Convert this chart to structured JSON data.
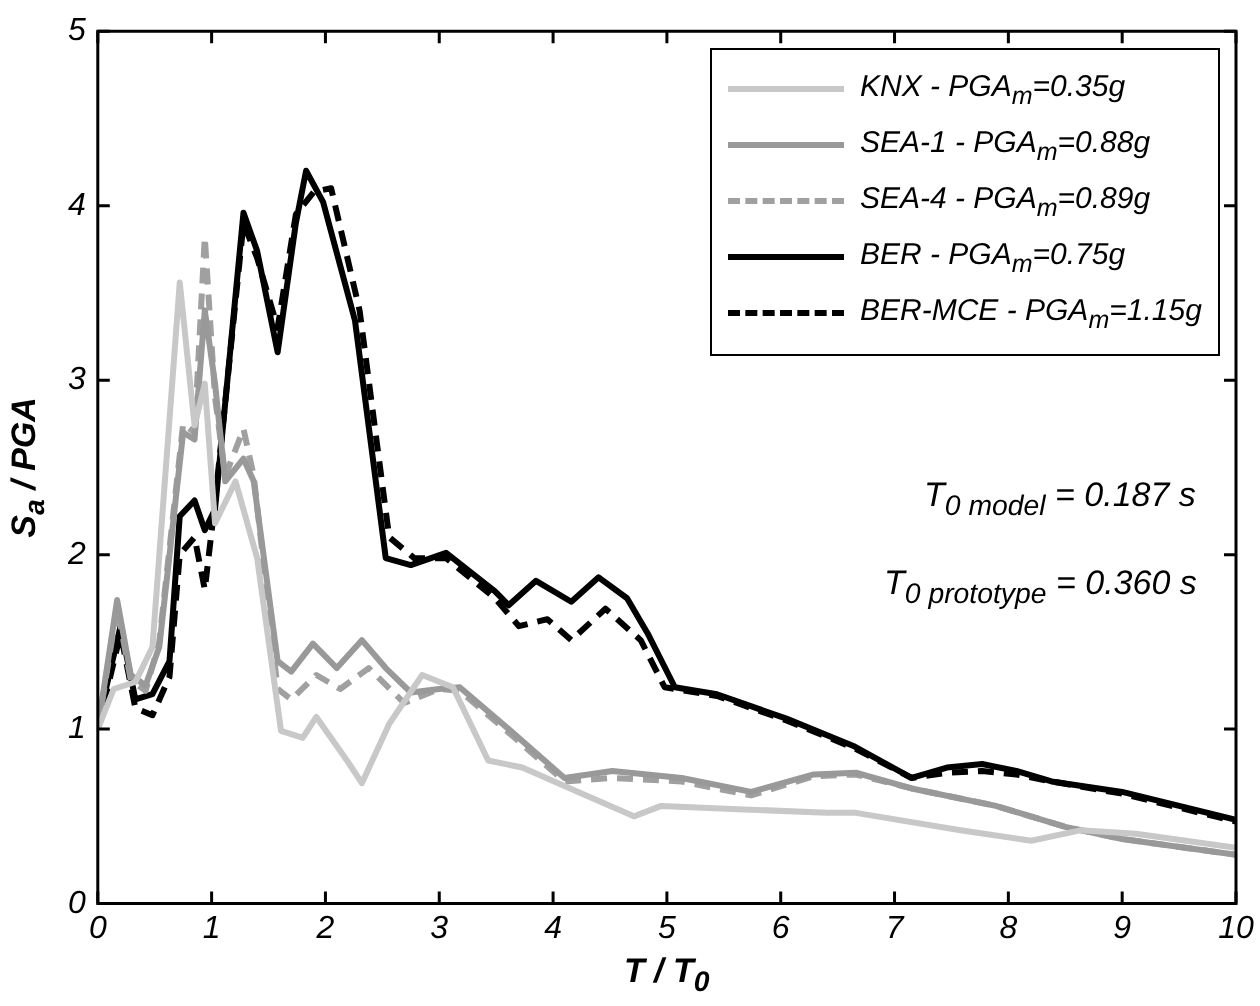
{
  "chart_data": {
    "type": "line",
    "xlabel": "T / T$_{0}$",
    "ylabel": "S$_{a}$ / PGA",
    "xlim": [
      0,
      10
    ],
    "xticks": [
      0,
      1,
      2,
      3,
      4,
      5,
      6,
      7,
      8,
      9,
      10
    ],
    "ylim": [
      0,
      5
    ],
    "yticks": [
      0,
      1,
      2,
      3,
      4,
      5
    ],
    "grid": false,
    "legend": "top right",
    "marker": "none",
    "annotations": [
      "T$_{0 model}$ = 0.187 s",
      "T$_{0 prototype}$ = 0.360 s"
    ],
    "series": [
      {
        "name": "KNX - PGA$_{m}$=0.35g",
        "color": "#c8c8c8",
        "line_style": "solid",
        "x": [
          0,
          0.14,
          0.33,
          0.48,
          0.72,
          0.85,
          0.94,
          1.03,
          1.21,
          1.4,
          1.61,
          1.8,
          1.92,
          2.2,
          2.32,
          2.56,
          2.85,
          3.12,
          3.43,
          3.73,
          4.22,
          4.71,
          4.95,
          5.68,
          6.41,
          6.66,
          7.58,
          8.2,
          8.63,
          9.12,
          10
        ],
        "values": [
          1,
          1.23,
          1.27,
          1.47,
          3.56,
          2.74,
          2.98,
          2.18,
          2.42,
          1.98,
          0.99,
          0.95,
          1.07,
          0.81,
          0.69,
          1.03,
          1.31,
          1.24,
          0.82,
          0.78,
          0.64,
          0.5,
          0.56,
          0.54,
          0.52,
          0.52,
          0.42,
          0.36,
          0.42,
          0.4,
          0.32
        ]
      },
      {
        "name": "SEA-1 - PGA$_{m}$=0.88g",
        "color": "#999999",
        "line_style": "solid",
        "x": [
          0,
          0.17,
          0.29,
          0.42,
          0.54,
          0.75,
          0.85,
          0.94,
          1.03,
          1.12,
          1.28,
          1.37,
          1.58,
          1.7,
          1.89,
          2.1,
          2.32,
          2.53,
          2.75,
          3.0,
          3.18,
          3.61,
          4.1,
          4.52,
          5.13,
          5.74,
          6.29,
          6.66,
          7.15,
          7.89,
          8.5,
          9.0,
          10
        ],
        "values": [
          1,
          1.74,
          1.31,
          1.25,
          1.47,
          2.7,
          2.66,
          3.4,
          2.98,
          2.42,
          2.55,
          2.42,
          1.39,
          1.33,
          1.49,
          1.35,
          1.51,
          1.35,
          1.21,
          1.23,
          1.24,
          1.0,
          0.72,
          0.76,
          0.72,
          0.64,
          0.74,
          0.75,
          0.66,
          0.56,
          0.44,
          0.37,
          0.28
        ]
      },
      {
        "name": "SEA-4 - PGA$_{m}$=0.89g",
        "color": "#a0a0a0",
        "line_style": "dashed",
        "x": [
          0,
          0.17,
          0.29,
          0.42,
          0.54,
          0.75,
          0.85,
          0.94,
          1.03,
          1.12,
          1.28,
          1.37,
          1.58,
          1.7,
          1.92,
          2.13,
          2.38,
          2.69,
          3.0,
          3.18,
          3.61,
          4.1,
          4.52,
          5.13,
          5.74,
          6.29,
          6.66,
          7.15,
          7.89,
          8.5,
          9.0,
          10
        ],
        "values": [
          1,
          1.7,
          1.28,
          1.22,
          1.5,
          2.75,
          2.7,
          3.82,
          2.9,
          2.45,
          2.72,
          2.45,
          1.23,
          1.17,
          1.31,
          1.23,
          1.35,
          1.15,
          1.23,
          1.22,
          0.98,
          0.7,
          0.72,
          0.7,
          0.62,
          0.73,
          0.74,
          0.66,
          0.56,
          0.44,
          0.37,
          0.28
        ]
      },
      {
        "name": "BER - PGA$_{m}$=0.75g",
        "color": "#000000",
        "line_style": "solid",
        "x": [
          0,
          0.2,
          0.33,
          0.48,
          0.63,
          0.72,
          0.85,
          0.94,
          1.03,
          1.28,
          1.4,
          1.58,
          1.74,
          1.83,
          1.98,
          2.26,
          2.53,
          2.75,
          3.06,
          3.49,
          3.61,
          3.85,
          4.16,
          4.4,
          4.65,
          4.83,
          5.07,
          5.44,
          6.05,
          6.65,
          7.15,
          7.46,
          7.77,
          8.07,
          8.38,
          9.0,
          10
        ],
        "values": [
          1.03,
          1.59,
          1.17,
          1.2,
          1.39,
          2.22,
          2.31,
          2.14,
          2.26,
          3.96,
          3.74,
          3.16,
          3.9,
          4.2,
          4.02,
          3.34,
          1.98,
          1.94,
          2.01,
          1.79,
          1.71,
          1.85,
          1.73,
          1.87,
          1.75,
          1.55,
          1.24,
          1.2,
          1.06,
          0.9,
          0.72,
          0.78,
          0.8,
          0.76,
          0.7,
          0.64,
          0.48
        ]
      },
      {
        "name": "BER-MCE - PGA$_{m}$=1.15g",
        "color": "#000000",
        "line_style": "dashed",
        "x": [
          0,
          0.2,
          0.33,
          0.48,
          0.63,
          0.72,
          0.85,
          0.94,
          1.03,
          1.28,
          1.4,
          1.58,
          1.74,
          1.9,
          2.05,
          2.3,
          2.56,
          2.78,
          3.06,
          3.49,
          3.7,
          3.95,
          4.16,
          4.46,
          4.77,
          4.98,
          5.44,
          6.05,
          6.65,
          7.15,
          7.46,
          7.77,
          8.07,
          8.38,
          9.0,
          10
        ],
        "values": [
          1.0,
          1.55,
          1.12,
          1.08,
          1.3,
          2.0,
          2.1,
          1.8,
          2.3,
          3.9,
          3.7,
          3.3,
          3.95,
          4.08,
          4.1,
          3.4,
          2.1,
          1.98,
          1.98,
          1.75,
          1.59,
          1.63,
          1.51,
          1.69,
          1.51,
          1.24,
          1.19,
          1.05,
          0.89,
          0.72,
          0.75,
          0.76,
          0.74,
          0.7,
          0.63,
          0.47
        ]
      }
    ]
  }
}
